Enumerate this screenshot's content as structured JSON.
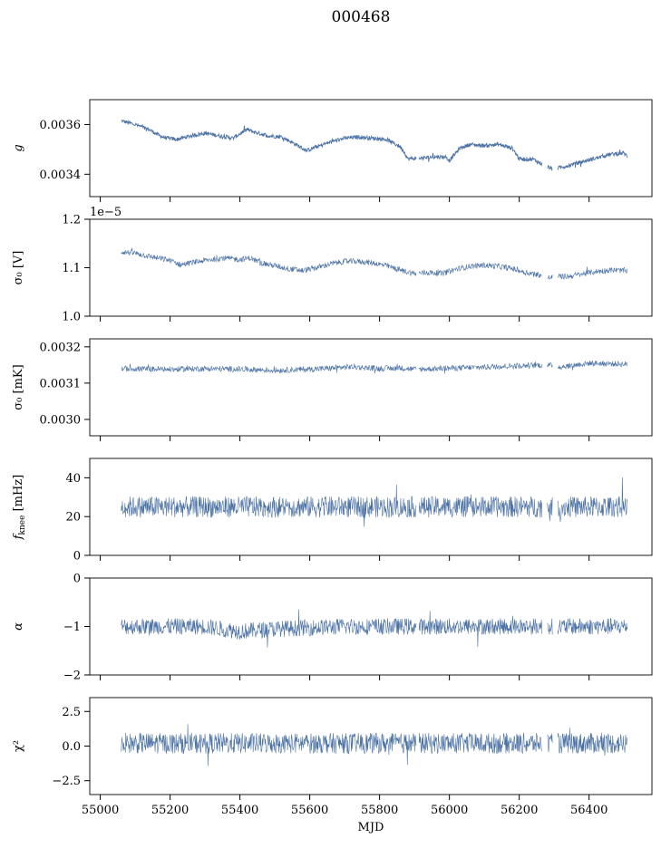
{
  "chart_data": [
    {
      "type": "line",
      "title": "000468",
      "xlabel": "",
      "ylabel": "g",
      "ylabel_style": "italic",
      "ylim": [
        0.00331,
        0.0037
      ],
      "yticks": [
        0.0034,
        0.0036
      ],
      "ytick_labels": [
        "0.0034",
        "0.0036"
      ],
      "series": [
        {
          "name": "g",
          "x": [
            55060,
            55100,
            55140,
            55170,
            55190,
            55220,
            55260,
            55300,
            55340,
            55380,
            55420,
            55440,
            55480,
            55520,
            55560,
            55590,
            55620,
            55660,
            55700,
            55740,
            55780,
            55820,
            55860,
            55875,
            55880,
            55920,
            55960,
            55990,
            56000,
            56030,
            56060,
            56100,
            56140,
            56180,
            56200,
            56240,
            56280,
            56300,
            56340,
            56380,
            56420,
            56460,
            56500,
            56510
          ],
          "values": [
            0.003615,
            0.0036,
            0.00358,
            0.003555,
            0.003545,
            0.00354,
            0.003555,
            0.003565,
            0.003555,
            0.003545,
            0.00358,
            0.00357,
            0.003555,
            0.00355,
            0.00352,
            0.003495,
            0.00351,
            0.00353,
            0.003545,
            0.00355,
            0.003545,
            0.00354,
            0.00351,
            0.00348,
            0.003462,
            0.003465,
            0.00347,
            0.00347,
            0.003455,
            0.003505,
            0.00352,
            0.003515,
            0.00352,
            0.003505,
            0.003462,
            0.00346,
            0.00343,
            0.00342,
            0.003435,
            0.00345,
            0.003465,
            0.00348,
            0.003485,
            0.00347
          ]
        }
      ],
      "noise": 8e-06
    },
    {
      "type": "line",
      "xlabel": "",
      "ylabel": "σ₀ [V]",
      "ylim": [
        1.0,
        1.2
      ],
      "yticks": [
        1.0,
        1.1,
        1.2
      ],
      "ytick_labels": [
        "1.0",
        "1.1",
        "1.2"
      ],
      "offset_text": "1e−5",
      "series": [
        {
          "name": "sigma0_V",
          "x": [
            55060,
            55100,
            55150,
            55200,
            55230,
            55260,
            55300,
            55350,
            55400,
            55430,
            55460,
            55500,
            55540,
            55580,
            55620,
            55660,
            55700,
            55740,
            55780,
            55820,
            55860,
            55900,
            55940,
            55980,
            56020,
            56060,
            56100,
            56140,
            56180,
            56220,
            56260,
            56280,
            56300,
            56340,
            56380,
            56420,
            56460,
            56510
          ],
          "values": [
            1.133,
            1.13,
            1.122,
            1.115,
            1.106,
            1.11,
            1.115,
            1.12,
            1.117,
            1.12,
            1.11,
            1.104,
            1.098,
            1.094,
            1.1,
            1.108,
            1.113,
            1.113,
            1.11,
            1.104,
            1.095,
            1.088,
            1.09,
            1.088,
            1.097,
            1.103,
            1.105,
            1.103,
            1.098,
            1.09,
            1.085,
            1.078,
            1.082,
            1.082,
            1.087,
            1.092,
            1.095,
            1.094
          ]
        }
      ],
      "noise": 0.006
    },
    {
      "type": "line",
      "xlabel": "",
      "ylabel": "σ₀ [mK]",
      "ylim": [
        0.002955,
        0.003222
      ],
      "yticks": [
        0.003,
        0.0031,
        0.0032
      ],
      "ytick_labels": [
        "0.0030",
        "0.0031",
        "0.0032"
      ],
      "series": [
        {
          "name": "sigma0_mK",
          "x": [
            55060,
            55200,
            55300,
            55420,
            55500,
            55640,
            55720,
            55800,
            55860,
            55900,
            55960,
            56040,
            56120,
            56200,
            56280,
            56320,
            56400,
            56510
          ],
          "values": [
            0.00314,
            0.003138,
            0.00314,
            0.003138,
            0.003135,
            0.00314,
            0.003145,
            0.00314,
            0.003142,
            0.003138,
            0.00314,
            0.003142,
            0.003145,
            0.003148,
            0.00315,
            0.003145,
            0.003155,
            0.003152
          ]
        }
      ],
      "noise": 8e-06
    },
    {
      "type": "line",
      "xlabel": "",
      "ylabel": "fknee [mHz]",
      "ylabel_main": "f",
      "ylabel_sub": "knee",
      "ylabel_unit": " [mHz]",
      "ylim": [
        0,
        50
      ],
      "yticks": [
        0,
        20,
        40
      ],
      "ytick_labels": [
        "0",
        "20",
        "40"
      ],
      "series": [
        {
          "name": "fknee",
          "x": [
            55060,
            56510
          ],
          "values": [
            25,
            25
          ]
        }
      ],
      "noise": 5.5
    },
    {
      "type": "line",
      "xlabel": "",
      "ylabel": "α",
      "ylabel_style": "italic",
      "ylim": [
        -2,
        0
      ],
      "yticks": [
        -2,
        -1,
        0
      ],
      "ytick_labels": [
        "−2",
        "−1",
        "0"
      ],
      "series": [
        {
          "name": "alpha",
          "x": [
            55060,
            55300,
            55400,
            55500,
            55700,
            56000,
            56300,
            56510
          ],
          "values": [
            -1.0,
            -1.0,
            -1.1,
            -1.05,
            -1.0,
            -1.0,
            -1.0,
            -1.0
          ]
        }
      ],
      "noise": 0.17
    },
    {
      "type": "line",
      "xlabel": "MJD",
      "ylabel": "χ²",
      "ylim": [
        -3.5,
        3.5
      ],
      "yticks": [
        -2.5,
        0.0,
        2.5
      ],
      "ytick_labels": [
        "−2.5",
        "0.0",
        "2.5"
      ],
      "xticks": [
        55000,
        55200,
        55400,
        55600,
        55800,
        56000,
        56200,
        56400
      ],
      "xtick_labels": [
        "55000",
        "55200",
        "55400",
        "55600",
        "55800",
        "56000",
        "56200",
        "56400"
      ],
      "series": [
        {
          "name": "chi2",
          "x": [
            55060,
            56510
          ],
          "values": [
            0.2,
            0.2
          ]
        }
      ],
      "noise": 0.75
    }
  ],
  "figure": {
    "suptitle": "000468",
    "xlim": [
      54970,
      56580
    ],
    "line_color": "#4c72a5",
    "data_gaps": [
      [
        55905,
        55912
      ],
      [
        56265,
        56280
      ],
      [
        56295,
        56310
      ]
    ]
  }
}
